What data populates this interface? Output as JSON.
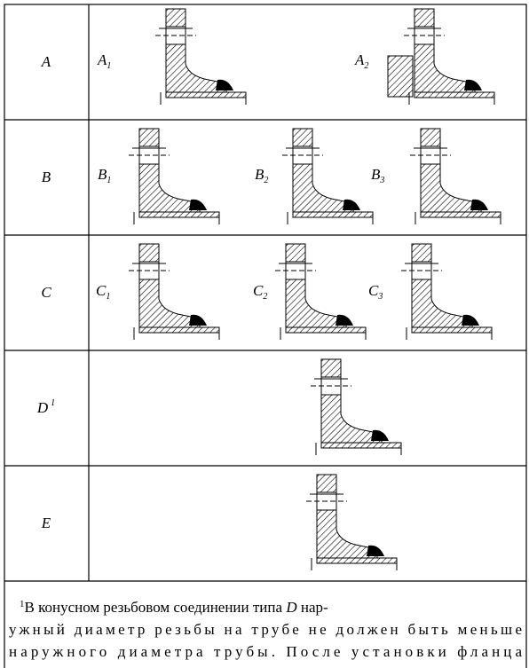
{
  "rows": [
    {
      "label": "A",
      "items": [
        {
          "label": "A",
          "sub": "1"
        },
        {
          "label": "A",
          "sub": "2"
        }
      ]
    },
    {
      "label": "B",
      "items": [
        {
          "label": "B",
          "sub": "1"
        },
        {
          "label": "B",
          "sub": "2"
        },
        {
          "label": "B",
          "sub": "3"
        }
      ]
    },
    {
      "label": "C",
      "items": [
        {
          "label": "C",
          "sub": "1"
        },
        {
          "label": "C",
          "sub": "2"
        },
        {
          "label": "C",
          "sub": "3"
        }
      ]
    },
    {
      "label": "D",
      "sup": "1",
      "items": []
    },
    {
      "label": "E",
      "items": []
    }
  ],
  "footnote": {
    "marker": "1",
    "line1": [
      "В конусном резьбовом соединении типа ",
      "D",
      " нар-"
    ],
    "line2": "ужный диаметр резьбы на трубе не должен быть меньше",
    "line3": "наружного диаметра трубы. После установки фланца"
  }
}
